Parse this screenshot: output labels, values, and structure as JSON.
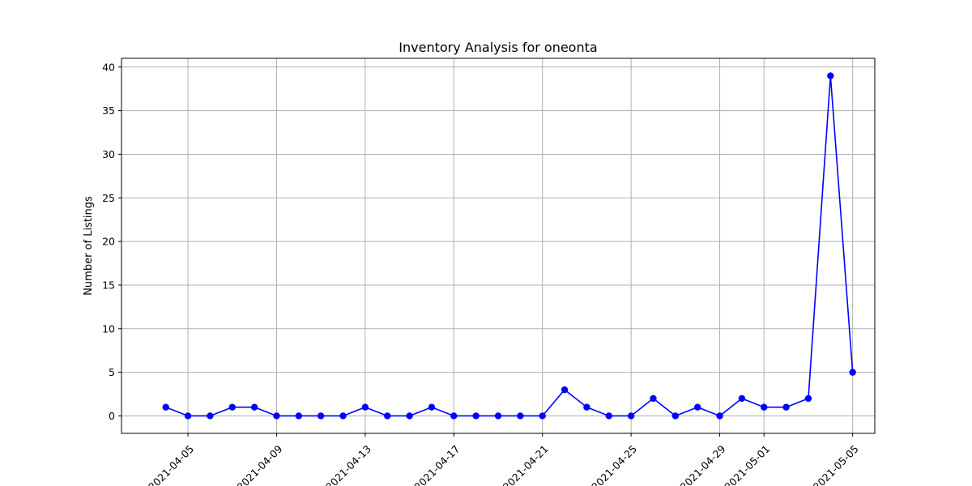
{
  "chart_data": {
    "type": "line",
    "title": "Inventory Analysis for oneonta",
    "xlabel": "",
    "ylabel": "Number of Listings",
    "x_ticks": [
      "2021-04-05",
      "2021-04-09",
      "2021-04-13",
      "2021-04-17",
      "2021-04-21",
      "2021-04-25",
      "2021-04-29",
      "2021-05-01",
      "2021-05-05"
    ],
    "y_ticks": [
      0,
      5,
      10,
      15,
      20,
      25,
      30,
      35,
      40
    ],
    "xlim": [
      "2021-04-02",
      "2021-05-06"
    ],
    "ylim": [
      -2,
      41
    ],
    "grid": true,
    "color": "#0000ff",
    "series": [
      {
        "x": [
          "2021-04-04",
          "2021-04-05",
          "2021-04-06",
          "2021-04-07",
          "2021-04-08",
          "2021-04-09",
          "2021-04-10",
          "2021-04-11",
          "2021-04-12",
          "2021-04-13",
          "2021-04-14",
          "2021-04-15",
          "2021-04-16",
          "2021-04-17",
          "2021-04-18",
          "2021-04-19",
          "2021-04-20",
          "2021-04-21",
          "2021-04-22",
          "2021-04-23",
          "2021-04-24",
          "2021-04-25",
          "2021-04-26",
          "2021-04-27",
          "2021-04-28",
          "2021-04-29",
          "2021-04-30",
          "2021-05-01",
          "2021-05-02",
          "2021-05-03",
          "2021-05-04",
          "2021-05-05"
        ],
        "y": [
          1,
          0,
          0,
          1,
          1,
          0,
          0,
          0,
          0,
          1,
          0,
          0,
          1,
          0,
          0,
          0,
          0,
          0,
          3,
          1,
          0,
          0,
          2,
          0,
          1,
          0,
          2,
          1,
          1,
          2,
          39,
          5
        ]
      }
    ]
  }
}
